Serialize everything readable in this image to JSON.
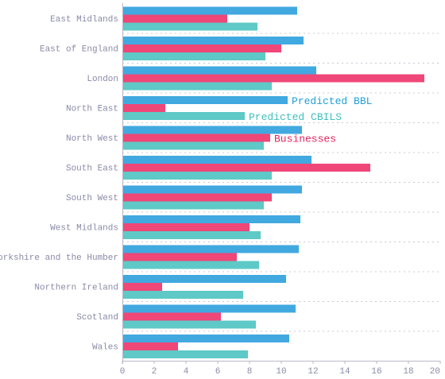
{
  "chart_data": {
    "type": "bar",
    "orientation": "horizontal",
    "categories": [
      "East Midlands",
      "East of England",
      "London",
      "North East",
      "North West",
      "South East",
      "South West",
      "West Midlands",
      "Yorkshire and the Humber",
      "Northern Ireland",
      "Scotland",
      "Wales"
    ],
    "series": [
      {
        "name": "Predicted BBL",
        "color": "#41a9e0",
        "values": [
          11.0,
          11.4,
          12.2,
          10.4,
          11.3,
          11.9,
          11.3,
          11.2,
          11.1,
          10.3,
          10.9,
          10.5
        ]
      },
      {
        "name": "Businesses",
        "color": "#ef4778",
        "values": [
          6.6,
          10.0,
          19.0,
          2.7,
          9.3,
          15.6,
          9.4,
          8.0,
          7.2,
          2.5,
          6.2,
          3.5
        ]
      },
      {
        "name": "Predicted CBILS",
        "color": "#5ec9c6",
        "values": [
          8.5,
          9.0,
          9.4,
          7.7,
          8.9,
          9.4,
          8.9,
          8.7,
          8.6,
          7.6,
          8.4,
          7.9
        ]
      }
    ],
    "xlim": [
      0,
      20
    ],
    "xticks": [
      "0",
      "2",
      "4",
      "6",
      "8",
      "10",
      "12",
      "14",
      "16",
      "18",
      "20"
    ],
    "grid": "dotted horizontal separators",
    "legend": "inline labels next to North East / North West bars",
    "inline_labels": [
      {
        "text": "Predicted BBL",
        "category": "North East",
        "series": 0,
        "color": "#1fa0d8"
      },
      {
        "text": "Predicted CBILS",
        "category": "North East",
        "series": 2,
        "color": "#3fc0bb"
      },
      {
        "text": "Businesses",
        "category": "North West",
        "series": 1,
        "color": "#e8245f"
      }
    ]
  }
}
